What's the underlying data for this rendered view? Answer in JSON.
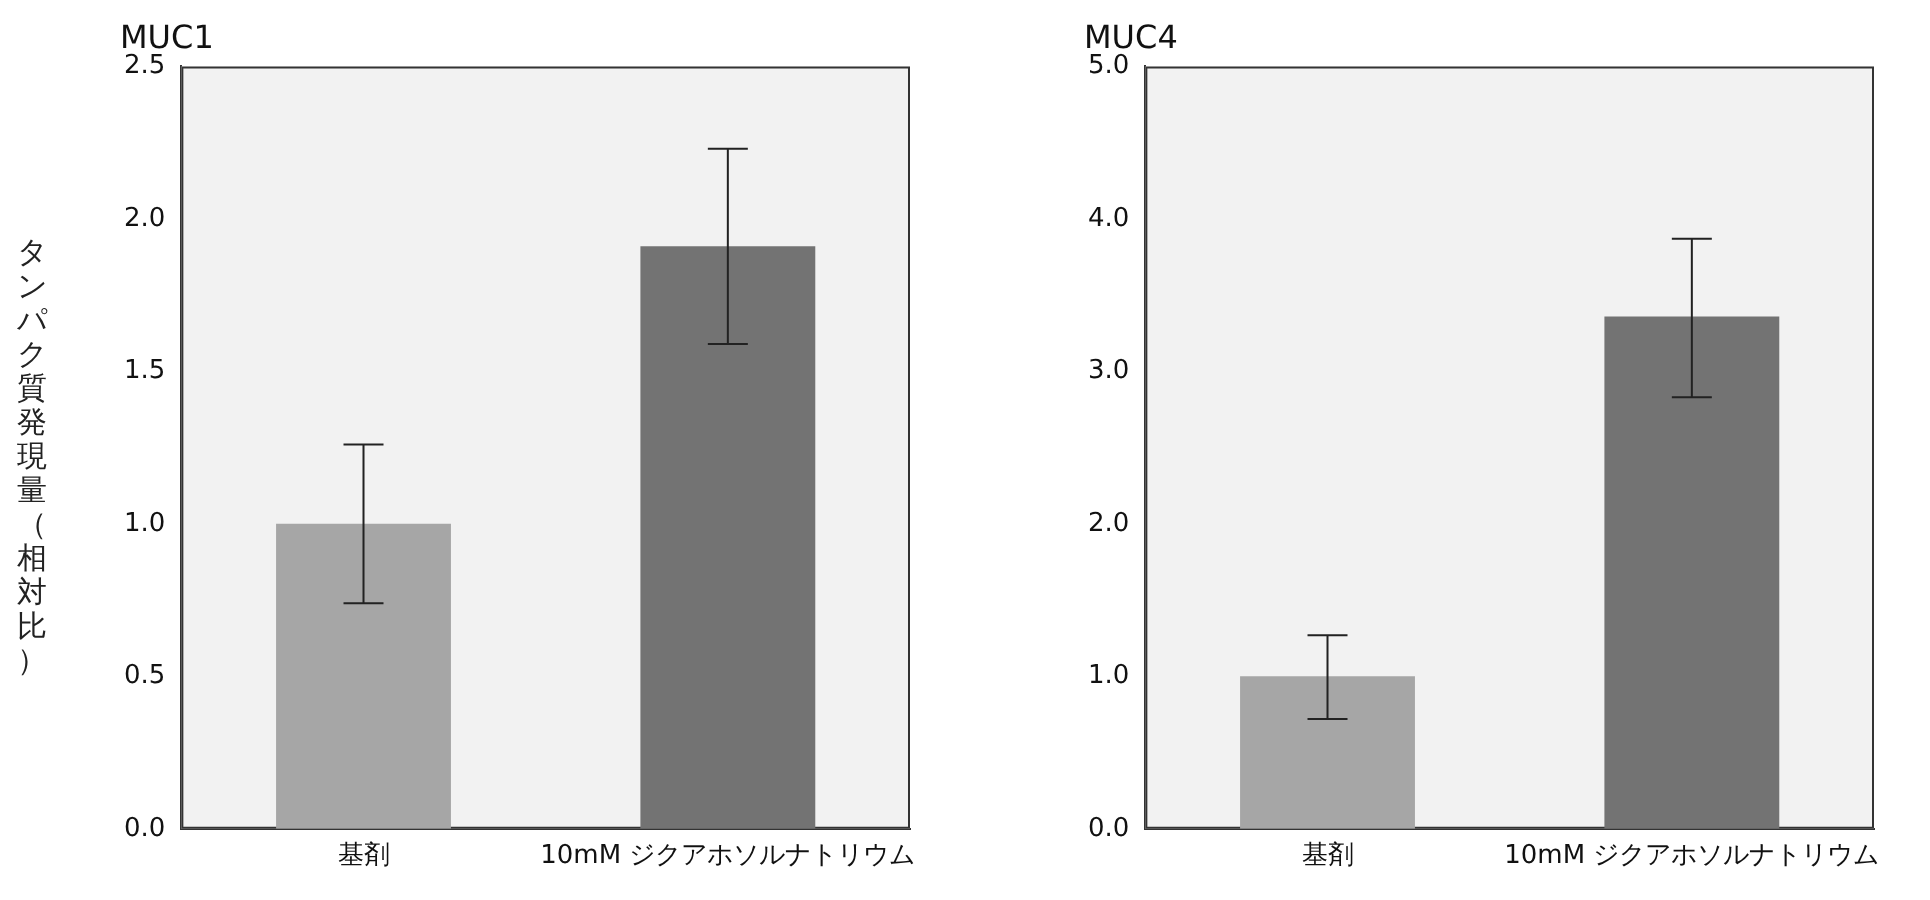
{
  "chart_data": [
    {
      "type": "bar",
      "title": "MUC1",
      "ylabel": "タンパク質発現量（相対比）",
      "categories": [
        "基剤",
        "10mM ジクアホソルナトリウム"
      ],
      "values": [
        1.0,
        1.91
      ],
      "colors": [
        "#a6a6a6",
        "#737373"
      ],
      "errors": [
        [
          0.74,
          1.26
        ],
        [
          1.59,
          2.23
        ]
      ],
      "ylim": [
        0,
        2.5
      ],
      "yticks": [
        {
          "value": 0,
          "label": "0.0"
        },
        {
          "value": 0.5,
          "label": "0.5"
        },
        {
          "value": 1,
          "label": "1.0"
        },
        {
          "value": 1.5,
          "label": "1.5"
        },
        {
          "value": 2,
          "label": "2.0"
        },
        {
          "value": 2.5,
          "label": "2.5"
        }
      ]
    },
    {
      "type": "bar",
      "title": "MUC4",
      "categories": [
        "基剤",
        "10mM ジクアホソルナトリウム"
      ],
      "values": [
        1.0,
        3.36
      ],
      "colors": [
        "#a6a6a6",
        "#737373"
      ],
      "errors": [
        [
          0.72,
          1.27
        ],
        [
          2.83,
          3.87
        ]
      ],
      "ylim": [
        0,
        5
      ],
      "yticks": [
        {
          "value": 0,
          "label": "0.0"
        },
        {
          "value": 1,
          "label": "1.0"
        },
        {
          "value": 2,
          "label": "2.0"
        },
        {
          "value": 3,
          "label": "3.0"
        },
        {
          "value": 4,
          "label": "4.0"
        },
        {
          "value": 5,
          "label": "5.0"
        }
      ]
    }
  ]
}
